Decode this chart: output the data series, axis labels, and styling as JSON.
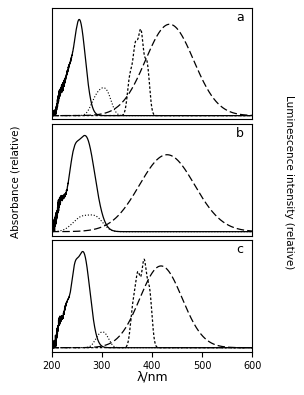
{
  "xlabel": "λ/nm",
  "ylabel_left": "Absorbance (relative)",
  "ylabel_right": "Luminescence intensity (relative)",
  "xlim": [
    200,
    600
  ],
  "panels": [
    "a",
    "b",
    "c"
  ],
  "background_color": "#ffffff"
}
